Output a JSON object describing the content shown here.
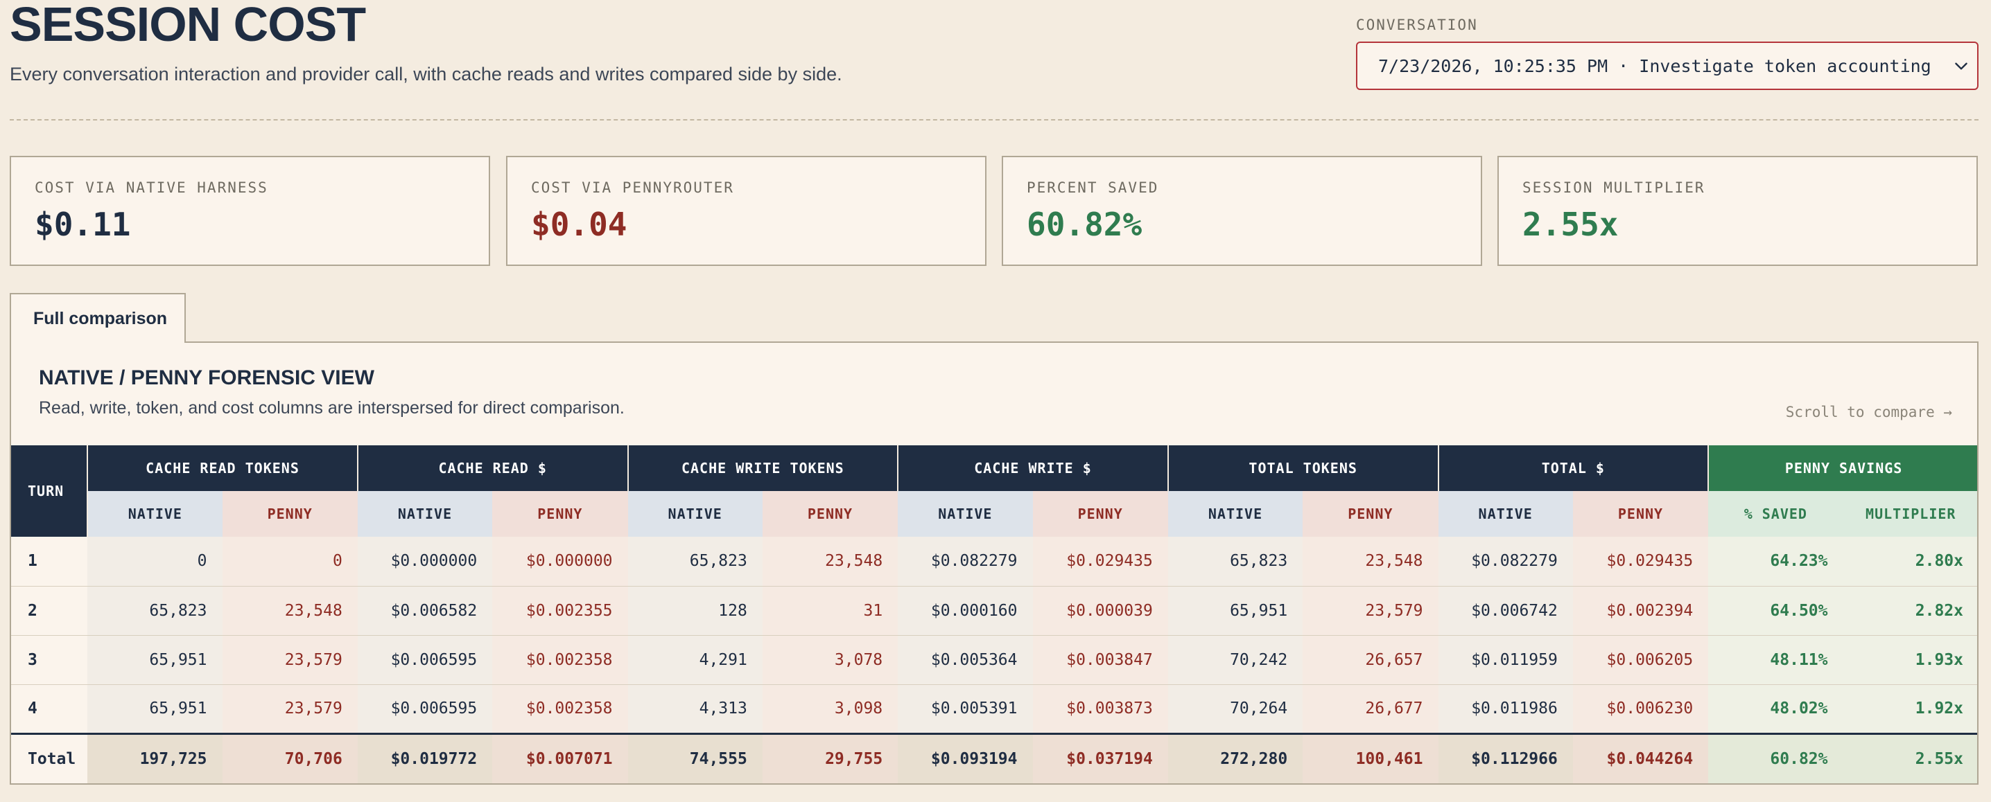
{
  "header": {
    "title": "SESSION COST",
    "subtitle": "Every conversation interaction and provider call, with cache reads and writes compared side by side."
  },
  "conversation": {
    "label": "CONVERSATION",
    "selected": "7/23/2026, 10:25:35 PM · Investigate token accounting",
    "icon": "chevron-down-icon"
  },
  "stats": [
    {
      "label": "COST VIA NATIVE HARNESS",
      "value": "$0.11",
      "color": "#1f2d42"
    },
    {
      "label": "COST VIA PENNYROUTER",
      "value": "$0.04",
      "color": "#8e2c24"
    },
    {
      "label": "PERCENT SAVED",
      "value": "60.82%",
      "color": "#2f7c4f"
    },
    {
      "label": "SESSION MULTIPLIER",
      "value": "2.55x",
      "color": "#2f7c4f"
    }
  ],
  "tabs": [
    {
      "label": "Full comparison",
      "active": true
    }
  ],
  "panel": {
    "title": "NATIVE / PENNY FORENSIC VIEW",
    "subtitle": "Read, write, token, and cost columns are interspersed for direct comparison.",
    "scroll_hint": "Scroll to compare →"
  },
  "table": {
    "turn_header": "TURN",
    "groups": [
      {
        "label": "CACHE READ TOKENS",
        "sub": [
          "NATIVE",
          "PENNY"
        ]
      },
      {
        "label": "CACHE READ $",
        "sub": [
          "NATIVE",
          "PENNY"
        ]
      },
      {
        "label": "CACHE WRITE TOKENS",
        "sub": [
          "NATIVE",
          "PENNY"
        ]
      },
      {
        "label": "CACHE WRITE $",
        "sub": [
          "NATIVE",
          "PENNY"
        ]
      },
      {
        "label": "TOTAL TOKENS",
        "sub": [
          "NATIVE",
          "PENNY"
        ]
      },
      {
        "label": "TOTAL $",
        "sub": [
          "NATIVE",
          "PENNY"
        ]
      },
      {
        "label": "PENNY SAVINGS",
        "sub": [
          "% SAVED",
          "MULTIPLIER"
        ]
      }
    ],
    "rows": [
      {
        "turn": "1",
        "cells": [
          "0",
          "0",
          "$0.000000",
          "$0.000000",
          "65,823",
          "23,548",
          "$0.082279",
          "$0.029435",
          "65,823",
          "23,548",
          "$0.082279",
          "$0.029435",
          "64.23%",
          "2.80x"
        ]
      },
      {
        "turn": "2",
        "cells": [
          "65,823",
          "23,548",
          "$0.006582",
          "$0.002355",
          "128",
          "31",
          "$0.000160",
          "$0.000039",
          "65,951",
          "23,579",
          "$0.006742",
          "$0.002394",
          "64.50%",
          "2.82x"
        ]
      },
      {
        "turn": "3",
        "cells": [
          "65,951",
          "23,579",
          "$0.006595",
          "$0.002358",
          "4,291",
          "3,078",
          "$0.005364",
          "$0.003847",
          "70,242",
          "26,657",
          "$0.011959",
          "$0.006205",
          "48.11%",
          "1.93x"
        ]
      },
      {
        "turn": "4",
        "cells": [
          "65,951",
          "23,579",
          "$0.006595",
          "$0.002358",
          "4,313",
          "3,098",
          "$0.005391",
          "$0.003873",
          "70,264",
          "26,677",
          "$0.011986",
          "$0.006230",
          "48.02%",
          "1.92x"
        ]
      }
    ],
    "total": {
      "turn": "Total",
      "cells": [
        "197,725",
        "70,706",
        "$0.019772",
        "$0.007071",
        "74,555",
        "29,755",
        "$0.093194",
        "$0.037194",
        "272,280",
        "100,461",
        "$0.112966",
        "$0.044264",
        "60.82%",
        "2.55x"
      ]
    }
  }
}
